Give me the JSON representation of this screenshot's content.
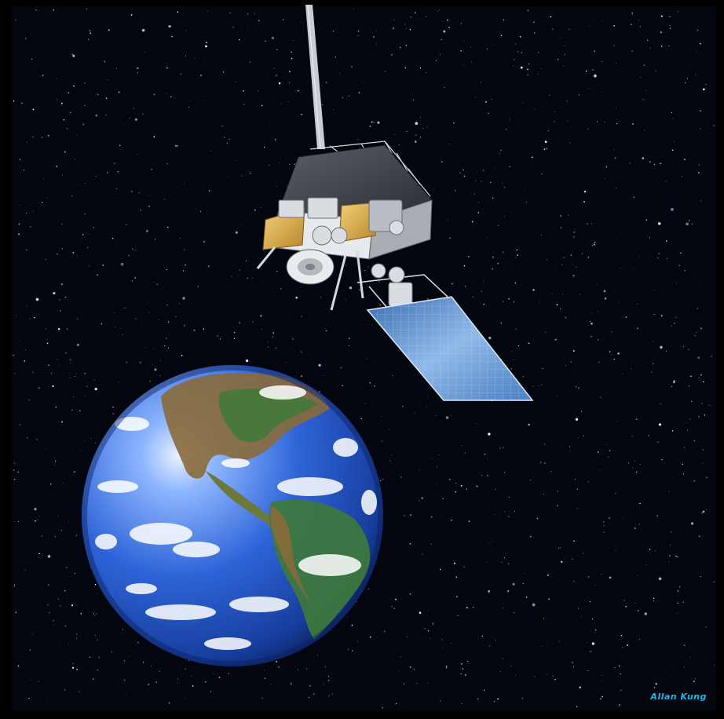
{
  "scene": {
    "subjects": [
      "space-background",
      "earth-globe",
      "weather-satellite"
    ],
    "colors": {
      "space": "#03060f",
      "ocean": "#2b63d6",
      "ocean_light": "#9fc4ff",
      "land_green": "#3f7a3a",
      "land_brown": "#7a5a2e",
      "cloud": "#ffffff",
      "satellite_body": "#c9ccd1",
      "satellite_gold": "#e0b24a",
      "solar_panel": "#6b9fd8"
    }
  },
  "signature": {
    "text": "Allan Kung",
    "color": "#19b8e6"
  }
}
